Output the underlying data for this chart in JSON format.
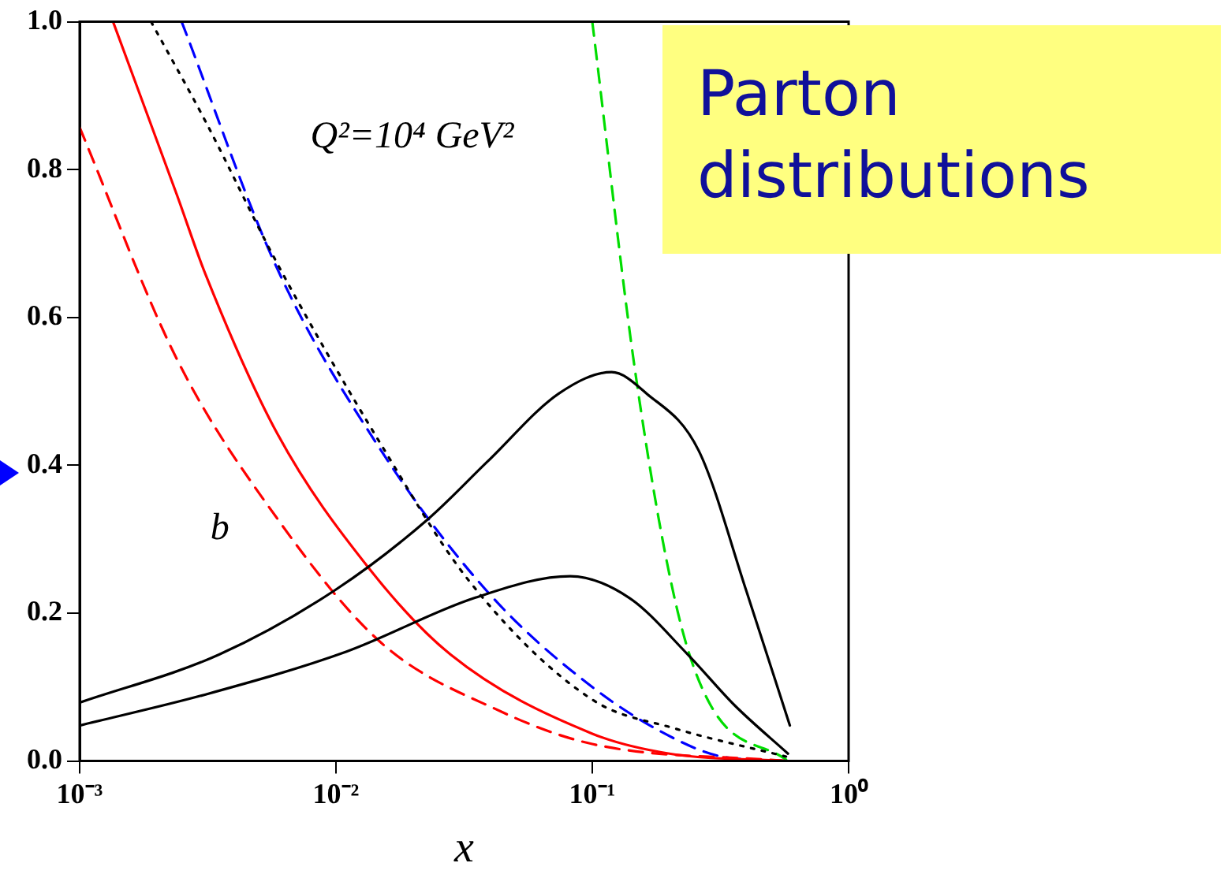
{
  "chart_data": {
    "type": "line",
    "title": "Parton distributions",
    "xlabel": "x",
    "annotations": [
      "Q²=10⁴ GeV²",
      "b"
    ],
    "log": "x",
    "grid": false,
    "legend": false,
    "marker": "none",
    "xlim": [
      0.001,
      1
    ],
    "ylim": [
      0,
      1
    ],
    "xticks": [
      {
        "value": 0.001,
        "label": "10⁻³"
      },
      {
        "value": 0.01,
        "label": "10⁻²"
      },
      {
        "value": 0.1,
        "label": "10⁻¹"
      },
      {
        "value": 1,
        "label": "10⁰"
      }
    ],
    "yticks": [
      {
        "value": 0,
        "label": "0.0"
      },
      {
        "value": 0.2,
        "label": "0.2"
      },
      {
        "value": 0.4,
        "label": "0.4"
      },
      {
        "value": 0.6,
        "label": "0.6"
      },
      {
        "value": 0.8,
        "label": "0.8"
      },
      {
        "value": 1,
        "label": "1.0"
      }
    ],
    "series": [
      {
        "color": "#000000",
        "line_style": "solid",
        "x": [
          0.001,
          0.0035,
          0.01,
          0.023,
          0.039,
          0.074,
          0.119,
          0.163,
          0.26,
          0.4,
          0.59
        ],
        "values": [
          0.079,
          0.144,
          0.232,
          0.328,
          0.405,
          0.497,
          0.526,
          0.497,
          0.42,
          0.229,
          0.048
        ]
      },
      {
        "color": "#000000",
        "line_style": "solid",
        "x": [
          0.001,
          0.0031,
          0.011,
          0.035,
          0.082,
          0.139,
          0.236,
          0.36,
          0.58
        ],
        "values": [
          0.048,
          0.09,
          0.148,
          0.221,
          0.25,
          0.221,
          0.144,
          0.075,
          0.01
        ]
      },
      {
        "color": "#ff0000",
        "line_style": "solid",
        "x": [
          0.00135,
          0.0024,
          0.0031,
          0.0059,
          0.0135,
          0.028,
          0.1,
          0.2,
          0.57
        ],
        "values": [
          1.0,
          0.765,
          0.658,
          0.443,
          0.26,
          0.144,
          0.037,
          0.01,
          0
        ]
      },
      {
        "color": "#ff0000",
        "line_style": "dashed",
        "x": [
          0.001,
          0.0024,
          0.0059,
          0.015,
          0.044,
          0.1,
          0.57
        ],
        "values": [
          0.857,
          0.543,
          0.328,
          0.16,
          0.067,
          0.023,
          0
        ]
      },
      {
        "color": "#000000",
        "line_style": "dotted",
        "x": [
          0.0019,
          0.0031,
          0.0059,
          0.015,
          0.033,
          0.1,
          0.21,
          0.57
        ],
        "values": [
          1.0,
          0.865,
          0.673,
          0.428,
          0.244,
          0.083,
          0.044,
          0.006
        ]
      },
      {
        "color": "#0000ff",
        "line_style": "dashed",
        "x": [
          0.0025,
          0.0059,
          0.015,
          0.039,
          0.1,
          0.21,
          0.32,
          0.57
        ],
        "values": [
          1.0,
          0.666,
          0.42,
          0.229,
          0.1,
          0.03,
          0.006,
          0
        ]
      },
      {
        "color": "#00dd00",
        "line_style": "dashed",
        "x": [
          0.1,
          0.148,
          0.214,
          0.29,
          0.57
        ],
        "values": [
          1.0,
          0.52,
          0.206,
          0.075,
          0.002
        ]
      }
    ]
  }
}
